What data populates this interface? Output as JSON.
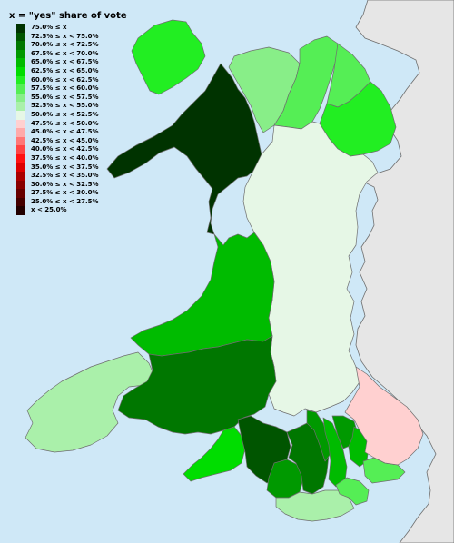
{
  "legend": {
    "title": "x = \"yes\" share of vote",
    "entries": [
      {
        "label": "75.0% ≤ x",
        "color": "#003300"
      },
      {
        "label": "72.5% ≤ x < 75.0%",
        "color": "#005500"
      },
      {
        "label": "70.0% ≤ x < 72.5%",
        "color": "#007700"
      },
      {
        "label": "67.5% ≤ x < 70.0%",
        "color": "#009900"
      },
      {
        "label": "65.0% ≤ x < 67.5%",
        "color": "#00bb00"
      },
      {
        "label": "62.5% ≤ x < 65.0%",
        "color": "#00dd00"
      },
      {
        "label": "60.0% ≤ x < 62.5%",
        "color": "#22ee22"
      },
      {
        "label": "57.5% ≤ x < 60.0%",
        "color": "#55ee55"
      },
      {
        "label": "55.0% ≤ x < 57.5%",
        "color": "#88ee88"
      },
      {
        "label": "52.5% ≤ x < 55.0%",
        "color": "#aaf0aa"
      },
      {
        "label": "50.0% ≤ x < 52.5%",
        "color": "#e6f7e6"
      },
      {
        "label": "47.5% ≤ x < 50.0%",
        "color": "#ffd0d0"
      },
      {
        "label": "45.0% ≤ x < 47.5%",
        "color": "#ffaaaa"
      },
      {
        "label": "42.5% ≤ x < 45.0%",
        "color": "#ff7777"
      },
      {
        "label": "40.0% ≤ x < 42.5%",
        "color": "#ff4444"
      },
      {
        "label": "37.5% ≤ x < 40.0%",
        "color": "#ff1111"
      },
      {
        "label": "35.0% ≤ x < 37.5%",
        "color": "#dd0000"
      },
      {
        "label": "32.5% ≤ x < 35.0%",
        "color": "#aa0000"
      },
      {
        "label": "30.0% ≤ x < 32.5%",
        "color": "#880000"
      },
      {
        "label": "27.5% ≤ x < 30.0%",
        "color": "#660000"
      },
      {
        "label": "25.0% ≤ x < 27.5%",
        "color": "#440000"
      },
      {
        "label": "x < 25.0%",
        "color": "#220000"
      }
    ]
  },
  "colors": {
    "sea": "#cfe8f7",
    "england": "#e6e6e6",
    "england_border": "#6e6e6e",
    "region_border": "#6e6e6e"
  },
  "regions": [
    {
      "id": "anglesey",
      "color": "#22ee22"
    },
    {
      "id": "gwynedd",
      "color": "#003300"
    },
    {
      "id": "conwy",
      "color": "#88ee88"
    },
    {
      "id": "denbighshire",
      "color": "#55ee55"
    },
    {
      "id": "flintshire",
      "color": "#55ee55"
    },
    {
      "id": "wrexham",
      "color": "#22ee22"
    },
    {
      "id": "powys",
      "color": "#e6f7e6"
    },
    {
      "id": "ceredigion",
      "color": "#00bb00"
    },
    {
      "id": "pembrokeshire",
      "color": "#aaf0aa"
    },
    {
      "id": "carmarthenshire",
      "color": "#007700"
    },
    {
      "id": "swansea",
      "color": "#00dd00"
    },
    {
      "id": "neath-port-talbot",
      "color": "#005500"
    },
    {
      "id": "bridgend",
      "color": "#009900"
    },
    {
      "id": "vale-of-glamorgan",
      "color": "#aaf0aa"
    },
    {
      "id": "rhondda-cynon-taf",
      "color": "#007700"
    },
    {
      "id": "merthyr-tydfil",
      "color": "#009900"
    },
    {
      "id": "caerphilly",
      "color": "#00bb00"
    },
    {
      "id": "blaenau-gwent",
      "color": "#009900"
    },
    {
      "id": "torfaen",
      "color": "#00bb00"
    },
    {
      "id": "cardiff",
      "color": "#55ee55"
    },
    {
      "id": "newport",
      "color": "#55ee55"
    },
    {
      "id": "monmouthshire",
      "color": "#ffd0d0"
    }
  ]
}
